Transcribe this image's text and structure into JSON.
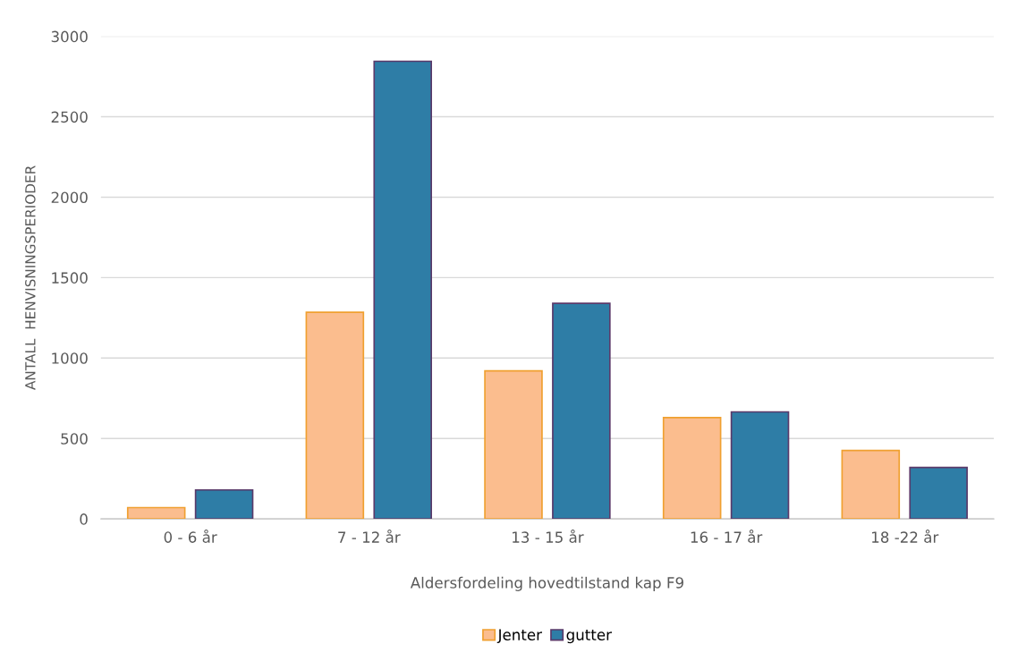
{
  "chart_data": {
    "type": "bar",
    "xlabel": "Aldersfordeling hovedtilstand kap F9",
    "ylabel": "ANTALL  HENVISNINGSPERIODER",
    "categories": [
      "0 - 6 år",
      "7 - 12 år",
      "13 - 15 år",
      "16 - 17 år",
      "18 -22 år"
    ],
    "series": [
      {
        "name": "Jenter",
        "color": "#fbbd8e",
        "values": [
          70,
          1285,
          920,
          630,
          425
        ]
      },
      {
        "name": "gutter",
        "color": "#2e7da6",
        "values": [
          180,
          2845,
          1340,
          665,
          320
        ]
      }
    ],
    "ylim": [
      0,
      3000
    ],
    "yticks": [
      0,
      500,
      1000,
      1500,
      2000,
      2500,
      3000
    ],
    "grid": "y",
    "legend": "bottom"
  }
}
